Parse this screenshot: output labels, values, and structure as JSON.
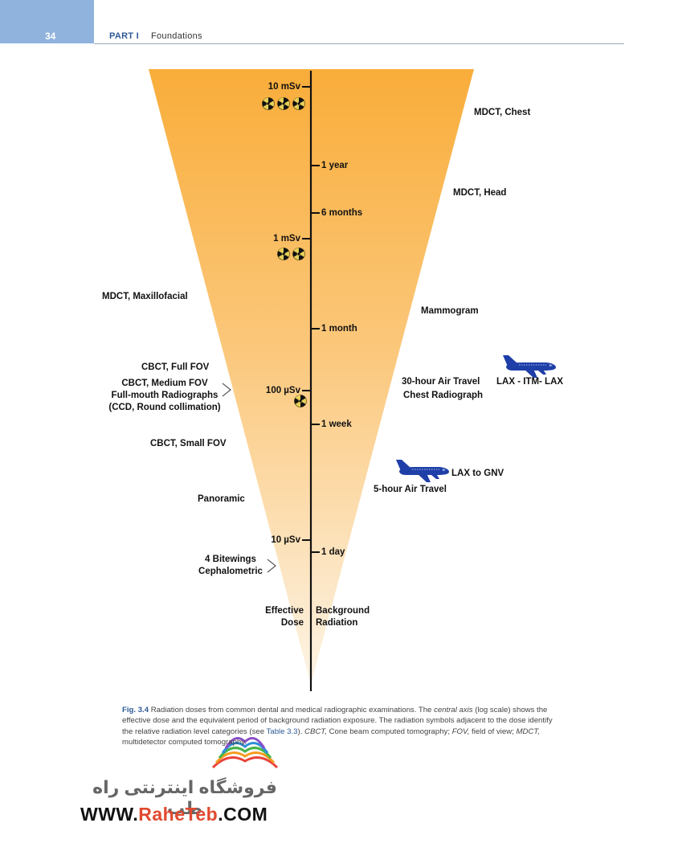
{
  "header": {
    "page_number": "34",
    "part_label": "PART I",
    "section_label": "Foundations"
  },
  "axis_dose": {
    "ticks": [
      {
        "label": "10 mSv",
        "symbols": 3
      },
      {
        "label": "1 mSv",
        "symbols": 2
      },
      {
        "label": "100 µSv",
        "symbols": 1
      },
      {
        "label": "10 µSv",
        "symbols": 0
      }
    ],
    "title_line1": "Effective",
    "title_line2": "Dose"
  },
  "axis_background": {
    "ticks": [
      {
        "label": "1 year"
      },
      {
        "label": "6 months"
      },
      {
        "label": "1 month"
      },
      {
        "label": "1 week"
      },
      {
        "label": "1 day"
      }
    ],
    "title_line1": "Background",
    "title_line2": "Radiation"
  },
  "dental_exams": {
    "mdct_maxillofacial": "MDCT, Maxillofacial",
    "cbct_full": "CBCT, Full FOV",
    "cbct_medium": "CBCT, Medium FOV",
    "fmx_line1": "Full-mouth Radiographs",
    "fmx_line2": "(CCD, Round collimation)",
    "cbct_small": "CBCT, Small FOV",
    "panoramic": "Panoramic",
    "bitewings": "4 Bitewings",
    "cephalometric": "Cephalometric"
  },
  "medical_exams": {
    "mdct_chest": "MDCT, Chest",
    "mdct_head": "MDCT, Head",
    "mammogram": "Mammogram",
    "air_travel_30": "30-hour Air Travel",
    "chest_radiograph": "Chest Radiograph",
    "air_travel_5": "5-hour Air Travel"
  },
  "flights": {
    "long": "LAX - ITM- LAX",
    "short": "LAX to GNV"
  },
  "colors": {
    "cone_top": "#f9ad3a",
    "cone_bottom": "#fdf4e6",
    "airplane": "#1f3fa8",
    "accent": "#2d5a96"
  },
  "caption": {
    "fig_label": "Fig. 3.4",
    "part1": "Radiation doses from common dental and medical radiographic examinations. The",
    "central_axis": "central axis",
    "part2": "(log scale) shows the effective dose and the equivalent period of background radiation exposure. The radiation symbols adjacent to the dose identify the relative radiation level categories (see",
    "table_ref": "Table 3.3",
    "part3": ").",
    "cbct_abbr": "CBCT,",
    "cbct_def": "Cone beam computed tomography;",
    "fov_abbr": "FOV,",
    "fov_def": "field of view;",
    "mdct_abbr": "MDCT,",
    "mdct_def": "multidetector computed tomography."
  },
  "watermark": {
    "persian": "فروشگاه اینترنتی راه طب",
    "url_prefix": "WWW.",
    "url_highlight": "RaheTeb",
    "url_suffix": ".COM"
  }
}
